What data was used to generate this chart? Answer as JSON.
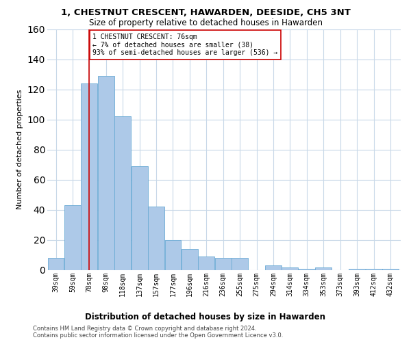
{
  "title": "1, CHESTNUT CRESCENT, HAWARDEN, DEESIDE, CH5 3NT",
  "subtitle": "Size of property relative to detached houses in Hawarden",
  "xlabel": "Distribution of detached houses by size in Hawarden",
  "ylabel": "Number of detached properties",
  "categories": [
    "39sqm",
    "59sqm",
    "78sqm",
    "98sqm",
    "118sqm",
    "137sqm",
    "157sqm",
    "177sqm",
    "196sqm",
    "216sqm",
    "236sqm",
    "255sqm",
    "275sqm",
    "294sqm",
    "314sqm",
    "334sqm",
    "353sqm",
    "373sqm",
    "393sqm",
    "412sqm",
    "432sqm"
  ],
  "values": [
    8,
    43,
    124,
    129,
    102,
    69,
    42,
    20,
    14,
    9,
    8,
    8,
    0,
    3,
    2,
    1,
    2,
    0,
    1,
    1,
    1
  ],
  "bar_color": "#adc9e8",
  "bar_edge_color": "#6aaad4",
  "annotation_box_text": "1 CHESTNUT CRESCENT: 76sqm\n← 7% of detached houses are smaller (38)\n93% of semi-detached houses are larger (536) →",
  "annotation_line_color": "#cc0000",
  "annotation_box_edge_color": "#cc0000",
  "footer_line1": "Contains HM Land Registry data © Crown copyright and database right 2024.",
  "footer_line2": "Contains public sector information licensed under the Open Government Licence v3.0.",
  "ylim": [
    0,
    160
  ],
  "bin_width": 19.5,
  "background_color": "#ffffff",
  "grid_color": "#c8d8e8",
  "title_fontsize": 9.5,
  "subtitle_fontsize": 8.5,
  "ylabel_fontsize": 8,
  "xlabel_fontsize": 8.5,
  "tick_fontsize": 7,
  "annotation_fontsize": 7,
  "footer_fontsize": 6
}
